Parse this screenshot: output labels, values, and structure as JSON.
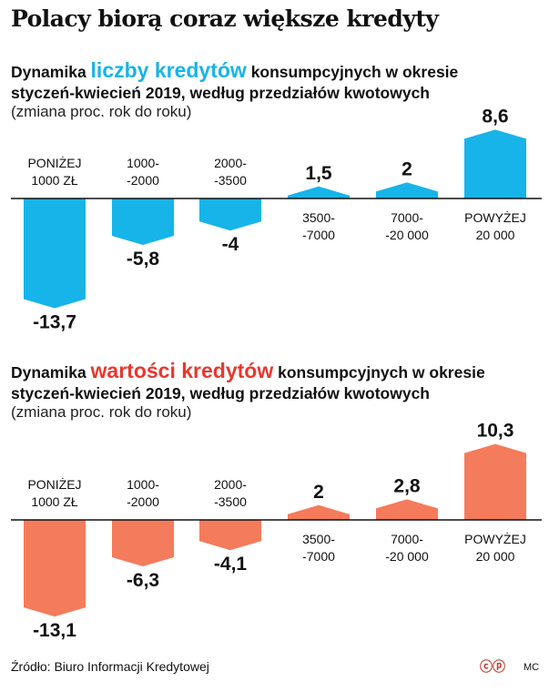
{
  "main_title": "Polacy biorą coraz większe kredyty",
  "charts": [
    {
      "heading_pre": "Dynamika ",
      "heading_hl": "liczby kredytów",
      "heading_post": " konsumpcyjnych w okresie",
      "heading_line2": "styczeń-kwiecień 2019, według przedziałów kwotowych",
      "note": "(zmiana proc. rok do roku)",
      "color": "#17b4e9"
    },
    {
      "heading_pre": "Dynamika ",
      "heading_hl": "wartości kredytów",
      "heading_post": " konsumpcyjnych w okresie",
      "heading_line2": "styczeń-kwiecień 2019, według przedziałów kwotowych",
      "note": "(zmiana proc. rok do roku)",
      "color": "#f47b5c",
      "highlight_color": "#e8382f"
    }
  ],
  "chart_data": [
    {
      "type": "bar",
      "title": "Dynamika liczby kredytów konsumpcyjnych w okresie styczeń-kwiecień 2019, według przedziałów kwotowych",
      "ylabel": "(zmiana proc. rok do roku)",
      "categories": [
        "PONIŻEJ\n1000 ZŁ",
        "1000-\n-2000",
        "2000-\n-3500",
        "3500-\n-7000",
        "7000-\n-20 000",
        "POWYŻEJ\n20 000"
      ],
      "values": [
        -13.7,
        -5.8,
        -4,
        1.5,
        2,
        8.6
      ],
      "value_labels": [
        "-13,7",
        "-5,8",
        "-4",
        "1,5",
        "2",
        "8,6"
      ]
    },
    {
      "type": "bar",
      "title": "Dynamika wartości kredytów konsumpcyjnych w okresie styczeń-kwiecień 2019, według przedziałów kwotowych",
      "ylabel": "(zmiana proc. rok do roku)",
      "categories": [
        "PONIŻEJ\n1000 ZŁ",
        "1000-\n-2000",
        "2000-\n-3500",
        "3500-\n-7000",
        "7000-\n-20 000",
        "POWYŻEJ\n20 000"
      ],
      "values": [
        -13.1,
        -6.3,
        -4.1,
        2,
        2.8,
        10.3
      ],
      "value_labels": [
        "-13,1",
        "-6,3",
        "-4,1",
        "2",
        "2,8",
        "10,3"
      ]
    }
  ],
  "footer": {
    "source": "Źródło: Biuro Informacji Kredytowej",
    "logo": "ⓒⓟ",
    "initials": "MC"
  }
}
